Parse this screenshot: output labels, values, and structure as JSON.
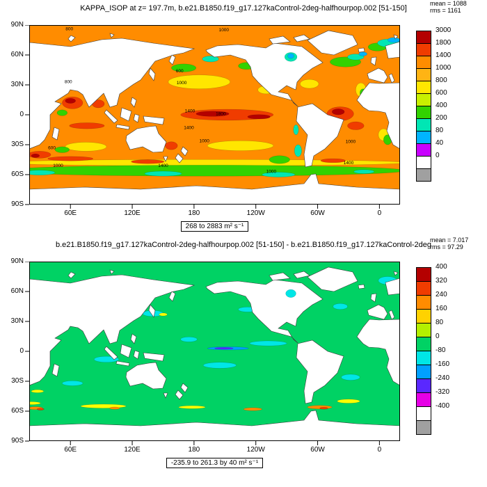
{
  "panels": [
    {
      "title": "KAPPA_ISOP at z= 197.7m, b.e21.B1850.f19_g17.127kaControl-2deg-halfhourpop.002 [51-150]",
      "stats": {
        "mean": "mean = 1088",
        "rms": "rms = 1161"
      },
      "caption": "268 to 2883 m² s⁻¹",
      "colorbar": {
        "labels": [
          "3000",
          "1800",
          "1400",
          "1000",
          "800",
          "600",
          "400",
          "200",
          "80",
          "40",
          "0"
        ],
        "colors": [
          "#b40000",
          "#f03c00",
          "#ff8c00",
          "#ffb414",
          "#ffe600",
          "#c8f000",
          "#32d200",
          "#00e6b4",
          "#00b4ff",
          "#c800ff",
          "#ffffff",
          "#a0a0a0"
        ]
      },
      "map": {
        "base_color": "#ff8c00",
        "features": [
          [
            190,
            -48,
            195,
            3.2,
            "#ffe600"
          ],
          [
            190,
            -56,
            195,
            5.5,
            "#32d200"
          ],
          [
            30,
            -58,
            15,
            2.5,
            "#00e6b4"
          ],
          [
            150,
            -59,
            18,
            2.5,
            "#00e6b4"
          ],
          [
            262,
            -60,
            16,
            2.5,
            "#00e6b4"
          ],
          [
            345,
            -57,
            10,
            2,
            "#00e6b4"
          ],
          [
            60,
            -44,
            22,
            2.2,
            "#f03c00"
          ],
          [
            135,
            -47,
            16,
            2,
            "#f03c00"
          ],
          [
            315,
            -46,
            12,
            2,
            "#f03c00"
          ],
          [
            185,
            33,
            30,
            7,
            "#ffe600"
          ],
          [
            170,
            47,
            12,
            4,
            "#32d200"
          ],
          [
            196,
            56,
            8,
            3,
            "#00e6b4"
          ],
          [
            231,
            49,
            8,
            3.5,
            "#32d200"
          ],
          [
            250,
            25,
            8,
            4,
            "#ffe600"
          ],
          [
            212,
            0,
            45,
            5.5,
            "#f03c00"
          ],
          [
            198,
            1,
            16,
            2.6,
            "#b40000"
          ],
          [
            243,
            -2,
            11,
            2.2,
            "#b40000"
          ],
          [
            62,
            12,
            10,
            6,
            "#f03c00"
          ],
          [
            60,
            14,
            5,
            2.5,
            "#b40000"
          ],
          [
            87,
            11,
            6,
            4,
            "#f03c00"
          ],
          [
            76,
            -11,
            17,
            3,
            "#f03c00"
          ],
          [
            30,
            -40,
            11,
            3.5,
            "#f03c00"
          ],
          [
            26,
            -41,
            4,
            1.8,
            "#b40000"
          ],
          [
            75,
            -32,
            20,
            4.5,
            "#ffe600"
          ],
          [
            52,
            -35,
            7,
            3,
            "#32d200"
          ],
          [
            158,
            -31,
            6,
            4,
            "#f03c00"
          ],
          [
            225,
            -31,
            32,
            5,
            "#ffe600"
          ],
          [
            263,
            -45,
            10,
            4,
            "#32d200"
          ],
          [
            281,
            -36,
            3.5,
            6,
            "#00e6b4"
          ],
          [
            279,
            -15,
            2.5,
            5,
            "#00e6b4"
          ],
          [
            322,
            1,
            13,
            7,
            "#f03c00"
          ],
          [
            320,
            3,
            6,
            3,
            "#b40000"
          ],
          [
            337,
            -11,
            8,
            4,
            "#f03c00"
          ],
          [
            292,
            31,
            9,
            4.5,
            "#ffe600"
          ],
          [
            327,
            53,
            15,
            5,
            "#32d200"
          ],
          [
            337,
            58,
            8,
            3,
            "#00e6b4"
          ],
          [
            344,
            61,
            4,
            2,
            "#00b4ff"
          ],
          [
            358,
            68,
            9,
            4,
            "#32d200"
          ],
          [
            369,
            72,
            11,
            4,
            "#00e6b4"
          ],
          [
            374,
            75,
            6,
            2.5,
            "#00b4ff"
          ],
          [
            303,
            72,
            8,
            3,
            "#00e6b4"
          ],
          [
            342,
            25,
            5,
            7,
            "#ffe600"
          ],
          [
            344,
            22,
            3,
            4,
            "#32d200"
          ],
          [
            364,
            -20,
            5,
            6,
            "#ffe600"
          ],
          [
            368,
            -25,
            4,
            5,
            "#32d200"
          ],
          [
            52,
            2,
            5,
            3,
            "#32d200"
          ]
        ],
        "features_after": [
          [
            274,
            58,
            6,
            4.5,
            "#00e6b4"
          ],
          [
            274,
            59,
            3,
            2.5,
            "#00b4ff"
          ]
        ],
        "contour_labels": [
          [
            "1000",
            209,
            85
          ],
          [
            "800",
            59,
            86
          ],
          [
            "800",
            58,
            33
          ],
          [
            "1000",
            168,
            32
          ],
          [
            "600",
            166,
            44
          ],
          [
            "1400",
            176,
            4
          ],
          [
            "1800",
            206,
            1
          ],
          [
            "1400",
            175,
            -13
          ],
          [
            "1000",
            190,
            -26
          ],
          [
            "1000",
            332,
            -27
          ],
          [
            "600",
            42,
            -33
          ],
          [
            "1000",
            48,
            -51
          ],
          [
            "1400",
            150,
            -51
          ],
          [
            "1400",
            330,
            -48
          ],
          [
            "1000",
            255,
            -57
          ]
        ]
      }
    },
    {
      "title": "b.e21.B1850.f19_g17.127kaControl-2deg-halfhourpop.002 [51-150] - b.e21.B1850.f19_g17.127kaControl-2deg",
      "stats": {
        "mean": "mean = 7.017",
        "rms": "rms = 97.29"
      },
      "caption": "-235.9 to 261.3 by 40 m² s⁻¹",
      "colorbar": {
        "labels": [
          "400",
          "320",
          "240",
          "160",
          "80",
          "0",
          "-80",
          "-160",
          "-240",
          "-320",
          "-400"
        ],
        "colors": [
          "#b40000",
          "#f03c00",
          "#ff8c00",
          "#ffd200",
          "#b4f000",
          "#00d264",
          "#00e6e6",
          "#00a0ff",
          "#5a28ff",
          "#e600e6",
          "#ffffff",
          "#a0a0a0"
        ]
      },
      "map": {
        "base_color": "#00d264",
        "features": [
          [
            140,
            38,
            10,
            3,
            "#00e6e6"
          ],
          [
            95,
            -8,
            12,
            3,
            "#00e6e6"
          ],
          [
            205,
            -14,
            16,
            3,
            "#00e6e6"
          ],
          [
            252,
            8,
            18,
            2.5,
            "#00e6e6"
          ],
          [
            175,
            12,
            8,
            2.5,
            "#00e6e6"
          ],
          [
            322,
            45,
            7,
            3,
            "#00e6e6"
          ],
          [
            332,
            -26,
            9,
            3,
            "#00e6e6"
          ],
          [
            62,
            -32,
            10,
            2.5,
            "#00e6e6"
          ],
          [
            232,
            42,
            9,
            2.5,
            "#00e6e6"
          ],
          [
            355,
            10,
            6,
            3,
            "#00e6e6"
          ],
          [
            213,
            3,
            20,
            1.6,
            "#00a0ff"
          ],
          [
            209,
            3,
            9,
            0.9,
            "#5a28ff"
          ],
          [
            92,
            -55,
            22,
            2,
            "#ffff00"
          ],
          [
            178,
            -56,
            13,
            1.5,
            "#ffff00"
          ],
          [
            330,
            -50,
            11,
            2,
            "#ffff00"
          ],
          [
            22,
            -52,
            9,
            1.5,
            "#ffff00"
          ],
          [
            26,
            -57,
            7,
            1.5,
            "#ff8c00"
          ],
          [
            237,
            -58,
            9,
            1.5,
            "#ff8c00"
          ],
          [
            302,
            -56,
            12,
            1.8,
            "#ff8c00"
          ],
          [
            103,
            -57,
            5,
            1.2,
            "#ff8c00"
          ],
          [
            31,
            -58,
            3.5,
            1,
            "#f03c00"
          ],
          [
            306,
            -57,
            4,
            1,
            "#f03c00"
          ],
          [
            150,
            37,
            4,
            1.5,
            "#ffff00"
          ],
          [
            28,
            -40,
            6,
            1.5,
            "#ffff00"
          ],
          [
            368,
            71,
            9,
            4,
            "#00e6e6"
          ],
          [
            303,
            71,
            7,
            3,
            "#00e6e6"
          ]
        ],
        "features_after": [
          [
            274,
            58,
            5,
            4,
            "#00e6e6"
          ]
        ],
        "contour_labels": []
      }
    }
  ],
  "axes": {
    "lat_labels": [
      "90N",
      "60N",
      "30N",
      "0",
      "30S",
      "60S",
      "90S"
    ],
    "lat_values": [
      90,
      60,
      30,
      0,
      -30,
      -60,
      -90
    ],
    "lon_labels": [
      "60E",
      "120E",
      "180",
      "120W",
      "60W",
      "0"
    ],
    "lon_values": [
      60,
      120,
      180,
      240,
      300,
      360
    ]
  },
  "land_paths": [
    "M0,25 L59,31 L104,21 L133,19 L178,26 L237,34 L222,40 L207,43 L181,52 L160,79 L150,85 L130,99 L126,115 L116,118 L107,98 L86,118 L77,100 L70,95 L59,93 L56,98 L37,110 L46,113 L30,129 L30,150 L22,165 L15,172 L0,178 Z",
    "M512,30 L533,24 L533,46 L516,48 Z",
    "M486,70 L502,62 L510,66 L515,75 L510,83 L488,77 Z",
    "M517,72 L521,70 L525,80 L521,83 Z",
    "M492,47 L499,46 L497,58 L491,54 Z",
    "M473,34 L481,33 L482,38 L474,39 Z",
    "M438,43 L420,40 L400,22 L430,8 L465,15 L472,28 Z",
    "M254,36 L270,30 L300,28 L340,33 L352,26 L392,31 L422,54 L407,62 L394,72 L385,82 L383,93 L370,87 L358,96 L372,99 L380,112 L386,117 L377,108 L348,100 L329,82 L321,73 L318,60 L311,50 L289,43 L266,46 L256,39 Z",
    "M345,20 L365,16 L375,24 L350,27 Z",
    "M380,18 L395,14 L403,20 L385,24 Z",
    "M386,118 L407,113 L429,129 L452,136 L443,160 L425,178 L409,188 L406,202 L397,204 L395,186 L400,158 L384,138 L385,129 Z",
    "M533,83 L503,84 L489,83 L480,94 L471,108 L480,118 L488,123 L503,124 L512,126 L517,140 L514,152 L523,172 L533,178 Z",
    "M36,147 L43,150 L40,165 L33,161 Z",
    "M140,159 L155,149 L172,146 L182,145 L186,156 L197,168 L192,182 L178,183 L163,175 L145,179 L139,166 Z",
    "M193,189 L199,189 L196,196 Z",
    "M164,131 L194,134 L192,143 L166,139 Z",
    "M133,119 L147,124 L143,138 L131,132 Z",
    "M111,122 L127,137 L122,141 L108,126 Z",
    "M126,143 L144,146 L143,150 L125,147 Z",
    "M152,128 L158,130 L156,140 L150,136 Z",
    "M148,104 L154,108 L151,118 L146,112 Z",
    "M174,62 L181,70 L179,80 L172,70 Z",
    "M205,43 L210,46 L206,57 L201,52 Z",
    "M221,175 L228,181 L224,188 L218,181 Z",
    "M214,185 L221,192 L216,198 L210,191 Z",
    "M60,15 L66,18 L60,24 L56,20 Z",
    "M116,12 L122,14 L118,18 Z",
    "M524,14 L530,16 L526,20 Z",
    "M0,236 L80,233 L160,236 L240,231 L320,236 L395,228 L405,215 L412,214 L416,228 L470,233 L533,236 L533,258 L0,258 Z"
  ],
  "chart_data": [
    {
      "type": "heatmap",
      "subtype": "filled_contour_world_map",
      "title": "KAPPA_ISOP at z= 197.7m, b.e21.B1850.f19_g17.127kaControl-2deg-halfhourpop.002 [51-150]",
      "field": "KAPPA_ISOP",
      "depth": "197.7m",
      "units": "m² s⁻¹",
      "stats": {
        "mean": 1088,
        "rms": 1161,
        "min": 268,
        "max": 2883
      },
      "contour_levels": [
        0,
        40,
        80,
        200,
        400,
        600,
        800,
        1000,
        1400,
        1800,
        3000
      ],
      "colorbar_labels_top_to_bottom": [
        3000,
        1800,
        1400,
        1000,
        800,
        600,
        400,
        200,
        80,
        40,
        0
      ],
      "palette_top_to_bottom": [
        "#b40000",
        "#f03c00",
        "#ff8c00",
        "#ffb414",
        "#ffe600",
        "#c8f000",
        "#32d200",
        "#00e6b4",
        "#00b4ff",
        "#c800ff",
        "#ffffff",
        "#a0a0a0"
      ],
      "lat_ticks": [
        "90N",
        "60N",
        "30N",
        "0",
        "30S",
        "60S",
        "90S"
      ],
      "lon_ticks": [
        "60E",
        "120E",
        "180",
        "120W",
        "60W",
        "0"
      ],
      "range_annotation": "268 to 2883 m² s⁻¹",
      "summary": "Global map, mostly 1000-1400 (orange); maxima above 1800 (red/dark red) in the equatorial Pacific, Arabian Sea, tropical Atlantic and near 45S; minima 80-600 (green/cyan/blue) in subpolar North Atlantic, Nordic Seas, North Pacific patches and along the Antarctic circumpolar band; continents masked white."
    },
    {
      "type": "heatmap",
      "subtype": "filled_contour_world_map_difference",
      "title": "b.e21.B1850.f19_g17.127kaControl-2deg-halfhourpop.002 [51-150] - b.e21.B1850.f19_g17.127kaControl-2deg",
      "units": "m² s⁻¹",
      "stats": {
        "mean": 7.017,
        "rms": 97.29,
        "min": -235.9,
        "max": 261.3
      },
      "contour_interval": 40,
      "colorbar_labels_top_to_bottom": [
        400,
        320,
        240,
        160,
        80,
        0,
        -80,
        -160,
        -240,
        -320,
        -400
      ],
      "palette_top_to_bottom": [
        "#b40000",
        "#f03c00",
        "#ff8c00",
        "#ffd200",
        "#b4f000",
        "#00d264",
        "#00e6e6",
        "#00a0ff",
        "#5a28ff",
        "#e600e6",
        "#ffffff",
        "#a0a0a0"
      ],
      "lat_ticks": [
        "90N",
        "60N",
        "30N",
        "0",
        "30S",
        "60S",
        "90S"
      ],
      "lon_ticks": [
        "60E",
        "120E",
        "180",
        "120W",
        "60W",
        "0"
      ],
      "range_annotation": "-235.9 to 261.3 by 40 m² s⁻¹",
      "summary": "Difference field near zero (uniform green) almost everywhere; weak negative anomalies (cyan) scattered in the tropics and subtropics including a narrow blue streak in the central equatorial Pacific; positive anomalies (yellow/orange/red) concentrated along the Southern Ocean near 55S."
    }
  ]
}
